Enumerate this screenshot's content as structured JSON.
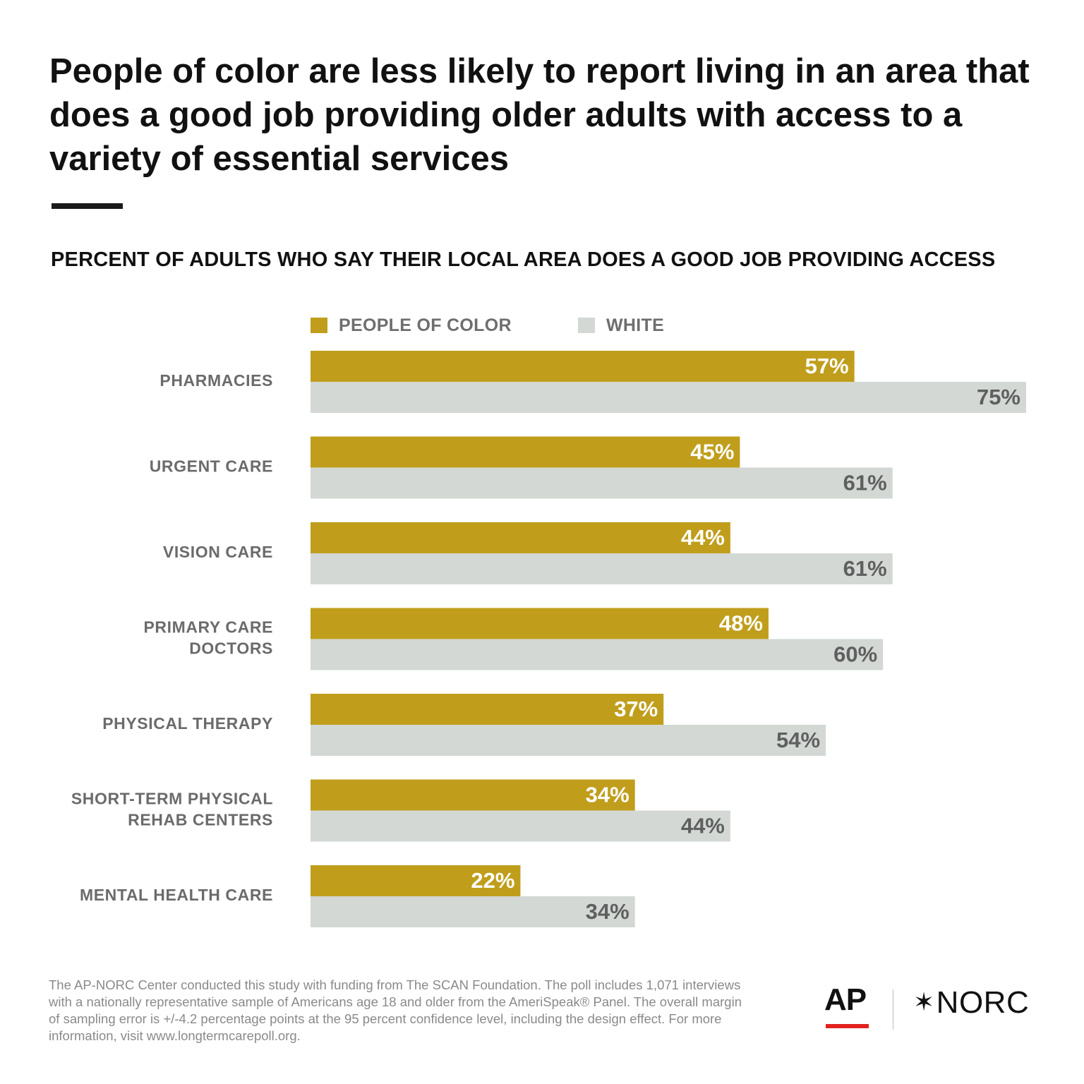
{
  "title": "People of color are less likely to report living in an area that does a good job providing older adults with access to a variety of essential services",
  "subtitle": "PERCENT OF ADULTS WHO SAY THEIR LOCAL AREA DOES A GOOD JOB PROVIDING ACCESS",
  "legend": {
    "people_of_color": "PEOPLE OF COLOR",
    "white": "WHITE"
  },
  "colors": {
    "people_of_color": "#C09E1C",
    "white": "#D3D8D4",
    "category_label": "#6b6b6b",
    "white_value_label": "#5f5f5f",
    "poc_value_label": "#ffffff",
    "ap_red": "#e2221e"
  },
  "chart_data": {
    "type": "bar",
    "orientation": "horizontal",
    "categories": [
      [
        "PHARMACIES"
      ],
      [
        "URGENT CARE"
      ],
      [
        "VISION CARE"
      ],
      [
        "PRIMARY CARE",
        "DOCTORS"
      ],
      [
        "PHYSICAL THERAPY"
      ],
      [
        "SHORT-TERM PHYSICAL",
        "REHAB CENTERS"
      ],
      [
        "MENTAL HEALTH CARE"
      ]
    ],
    "series": [
      {
        "name": "PEOPLE OF COLOR",
        "values": [
          57,
          45,
          44,
          48,
          37,
          34,
          22
        ],
        "labels": [
          "57%",
          "45%",
          "44%",
          "48%",
          "37%",
          "34%",
          "22%"
        ]
      },
      {
        "name": "WHITE",
        "values": [
          75,
          61,
          61,
          60,
          54,
          44,
          34
        ],
        "labels": [
          "75%",
          "61%",
          "61%",
          "60%",
          "54%",
          "44%",
          "34%"
        ]
      }
    ],
    "value_unit": "%",
    "xlim": [
      0,
      75
    ],
    "grid": false,
    "legend_position": "top"
  },
  "footnote": "The AP-NORC Center conducted this study with funding from The SCAN Foundation. The poll includes 1,071 interviews with a nationally representative sample of Americans age 18 and older from the AmeriSpeak® Panel. The overall margin of sampling error is +/-4.2 percentage points at the 95 percent confidence level, including the design effect. For more information, visit www.longtermcarepoll.org.",
  "logos": {
    "ap": "AP",
    "norc": "NORC"
  }
}
